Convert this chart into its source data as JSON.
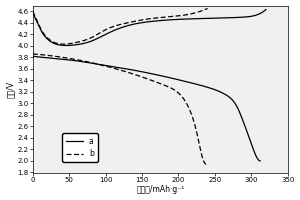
{
  "title": "",
  "xlabel": "比容量/mAh·g⁻¹",
  "ylabel": "电压/V",
  "xlim": [
    0,
    350
  ],
  "ylim": [
    1.8,
    4.7
  ],
  "yticks": [
    1.8,
    2.0,
    2.2,
    2.4,
    2.6,
    2.8,
    3.0,
    3.2,
    3.4,
    3.6,
    3.8,
    4.0,
    4.2,
    4.4,
    4.6
  ],
  "xticks": [
    0,
    50,
    100,
    150,
    200,
    250,
    300,
    350
  ],
  "background_color": "#f0f0f0",
  "charge_a_x": [
    0,
    2,
    5,
    10,
    20,
    40,
    60,
    80,
    100,
    130,
    160,
    200,
    250,
    290,
    310,
    320
  ],
  "charge_a_y": [
    4.58,
    4.52,
    4.44,
    4.3,
    4.12,
    4.01,
    4.02,
    4.08,
    4.2,
    4.35,
    4.42,
    4.46,
    4.48,
    4.5,
    4.55,
    4.63
  ],
  "discharge_a_x": [
    0,
    30,
    60,
    90,
    120,
    150,
    180,
    210,
    240,
    265,
    280,
    290,
    300,
    308,
    312
  ],
  "discharge_a_y": [
    3.82,
    3.78,
    3.74,
    3.68,
    3.62,
    3.55,
    3.47,
    3.38,
    3.28,
    3.15,
    2.95,
    2.65,
    2.3,
    2.05,
    2.0
  ],
  "charge_b_x": [
    0,
    2,
    5,
    10,
    20,
    40,
    60,
    80,
    100,
    130,
    160,
    200,
    230,
    240
  ],
  "charge_b_y": [
    4.6,
    4.54,
    4.46,
    4.32,
    4.14,
    4.03,
    4.06,
    4.14,
    4.28,
    4.4,
    4.47,
    4.52,
    4.6,
    4.65
  ],
  "discharge_b_x": [
    0,
    30,
    60,
    90,
    120,
    150,
    180,
    200,
    215,
    225,
    232,
    238
  ],
  "discharge_b_y": [
    3.86,
    3.82,
    3.76,
    3.68,
    3.58,
    3.46,
    3.32,
    3.18,
    2.9,
    2.5,
    2.1,
    1.95
  ]
}
